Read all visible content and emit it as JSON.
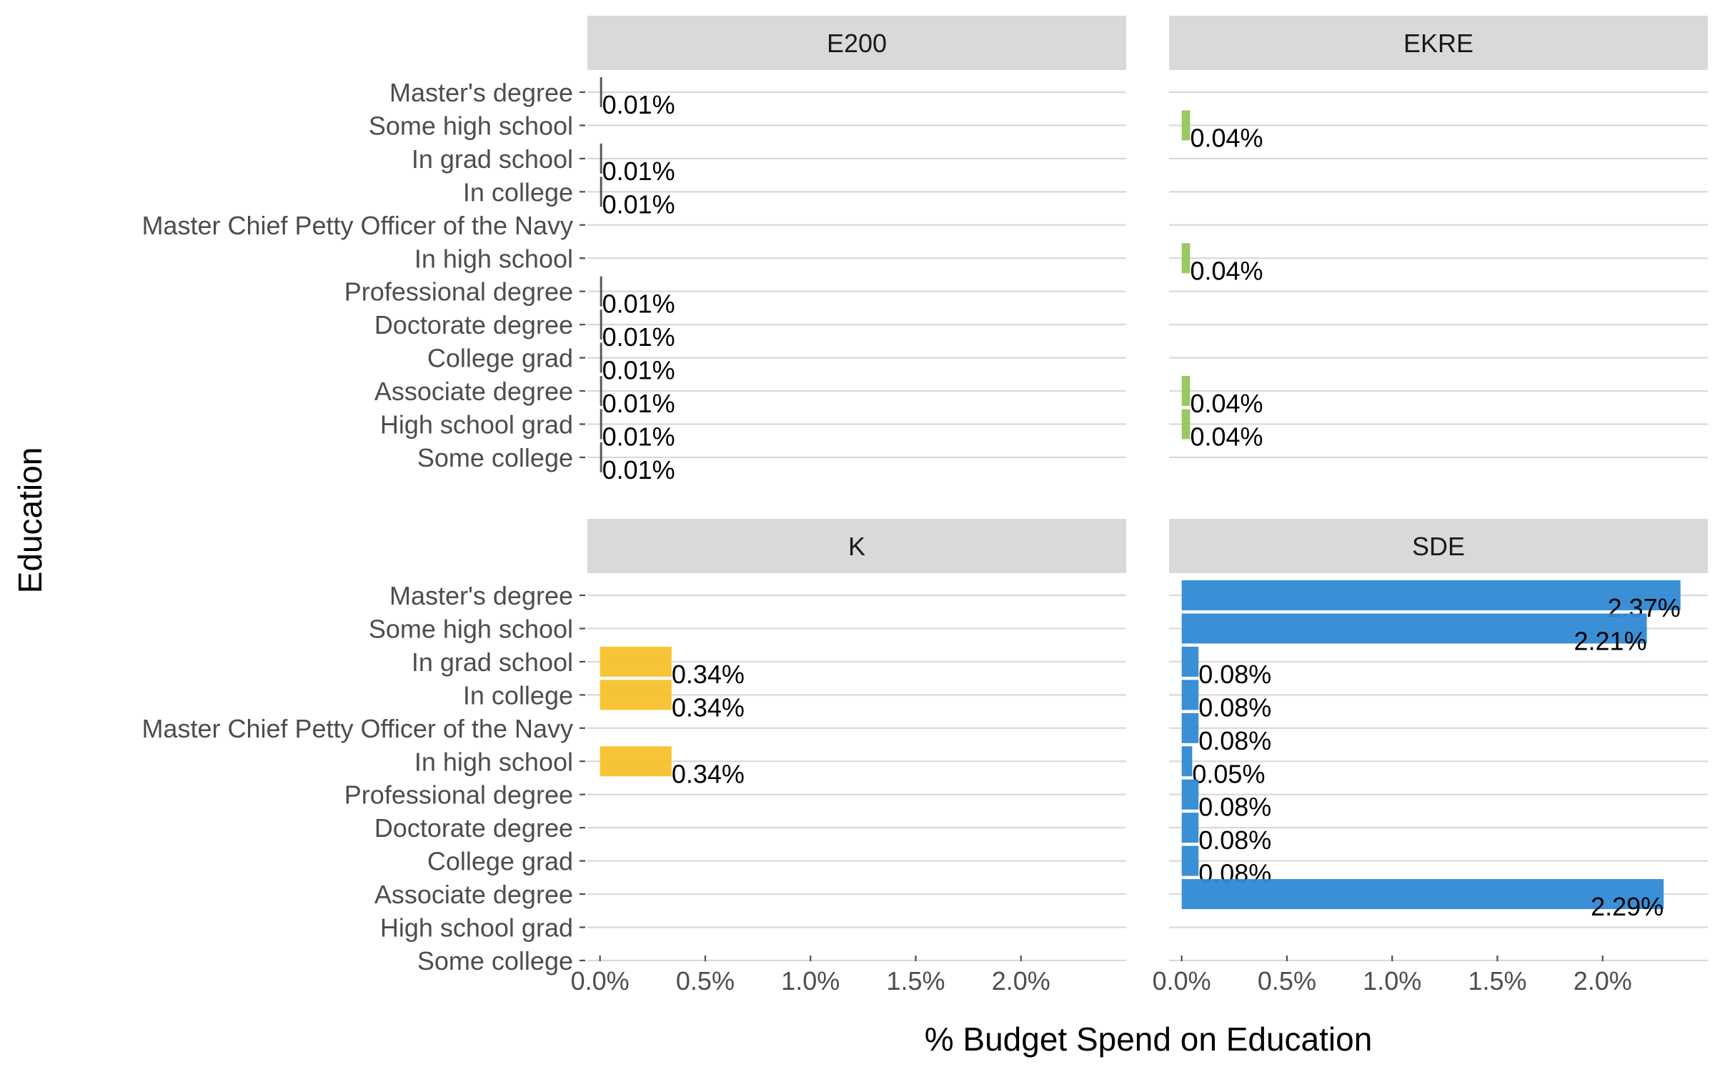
{
  "chart_data": {
    "type": "bar",
    "orientation": "horizontal",
    "xlabel": "% Budget Spend on Education",
    "ylabel": "Education",
    "xlim": [
      -0.06,
      2.5
    ],
    "x_ticks": [
      0,
      0.5,
      1.0,
      1.5,
      2.0
    ],
    "x_tick_labels": [
      "0.0%",
      "0.5%",
      "1.0%",
      "1.5%",
      "2.0%"
    ],
    "grid": true,
    "legend": "none",
    "categories": [
      "Master's degree",
      "Some high school",
      "In grad school",
      "In college",
      "Master Chief Petty Officer of the Navy",
      "In high school",
      "Professional degree",
      "Doctorate degree",
      "College grad",
      "Associate degree",
      "High school grad",
      "Some college"
    ],
    "facets": [
      {
        "name": "E200",
        "color": "#4d4d4d",
        "values": [
          0.01,
          null,
          0.01,
          0.01,
          null,
          null,
          0.01,
          0.01,
          0.01,
          0.01,
          0.01,
          0.01
        ],
        "labels": [
          "0.01%",
          "",
          "0.01%",
          "0.01%",
          "",
          "",
          "0.01%",
          "0.01%",
          "0.01%",
          "0.01%",
          "0.01%",
          "0.01%"
        ]
      },
      {
        "name": "EKRE",
        "color": "#93c65a",
        "values": [
          null,
          0.04,
          null,
          null,
          null,
          0.04,
          null,
          null,
          null,
          0.04,
          0.04,
          null
        ],
        "labels": [
          "",
          "0.04%",
          "",
          "",
          "",
          "0.04%",
          "",
          "",
          "",
          "0.04%",
          "0.04%",
          ""
        ]
      },
      {
        "name": "K",
        "color": "#f8c12c",
        "values": [
          null,
          null,
          0.34,
          0.34,
          null,
          0.34,
          null,
          null,
          null,
          null,
          null,
          null
        ],
        "labels": [
          "",
          "",
          "0.34%",
          "0.34%",
          "",
          "0.34%",
          "",
          "",
          "",
          "",
          "",
          ""
        ]
      },
      {
        "name": "SDE",
        "color": "#2f89d4",
        "values": [
          2.37,
          2.21,
          0.08,
          0.08,
          0.08,
          0.05,
          0.08,
          0.08,
          0.08,
          2.29,
          null,
          null
        ],
        "labels": [
          "2.37%",
          "2.21%",
          "0.08%",
          "0.08%",
          "0.08%",
          "0.05%",
          "0.08%",
          "0.08%",
          "0.08%",
          "2.29%",
          "",
          ""
        ]
      }
    ]
  }
}
